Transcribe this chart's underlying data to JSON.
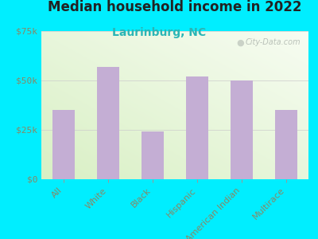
{
  "title": "Median household income in 2022",
  "subtitle": "Laurinburg, NC",
  "categories": [
    "All",
    "White",
    "Black",
    "Hispanic",
    "American Indian",
    "Multirace"
  ],
  "values": [
    35000,
    57000,
    24000,
    52000,
    50000,
    35000
  ],
  "bar_color": "#c4aed4",
  "title_fontsize": 12,
  "subtitle_fontsize": 10,
  "subtitle_color": "#2ab5b5",
  "background_color": "#00eeff",
  "ylim": [
    0,
    75000
  ],
  "yticks": [
    0,
    25000,
    50000,
    75000
  ],
  "ytick_labels": [
    "$0",
    "$25k",
    "$50k",
    "$75k"
  ],
  "watermark": "City-Data.com",
  "grid_color": "#cccccc",
  "tick_label_color": "#888866",
  "plot_bg_left_bottom": "#cce8c8",
  "plot_bg_right_top": "#f8faf0"
}
